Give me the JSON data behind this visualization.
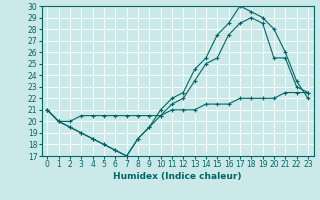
{
  "background_color": "#cce9e9",
  "grid_color": "#ffffff",
  "line_color": "#006666",
  "xlabel": "Humidex (Indice chaleur)",
  "xlim": [
    -0.5,
    23.5
  ],
  "ylim": [
    17,
    30
  ],
  "yticks": [
    17,
    18,
    19,
    20,
    21,
    22,
    23,
    24,
    25,
    26,
    27,
    28,
    29,
    30
  ],
  "xticks": [
    0,
    1,
    2,
    3,
    4,
    5,
    6,
    7,
    8,
    9,
    10,
    11,
    12,
    13,
    14,
    15,
    16,
    17,
    18,
    19,
    20,
    21,
    22,
    23
  ],
  "lines": [
    {
      "x": [
        0,
        1,
        2,
        3,
        4,
        5,
        6,
        7,
        8,
        9,
        10,
        11,
        12,
        13,
        14,
        15,
        16,
        17,
        18,
        19,
        20,
        21,
        22,
        23
      ],
      "y": [
        21.0,
        20.0,
        19.5,
        19.0,
        18.5,
        18.0,
        17.5,
        17.0,
        18.5,
        19.5,
        20.5,
        21.5,
        22.0,
        23.5,
        25.0,
        25.5,
        27.5,
        28.5,
        29.0,
        28.5,
        25.5,
        25.5,
        23.0,
        22.5
      ]
    },
    {
      "x": [
        0,
        1,
        2,
        3,
        4,
        5,
        6,
        7,
        8,
        9,
        10,
        11,
        12,
        13,
        14,
        15,
        16,
        17,
        18,
        19,
        20,
        21,
        22,
        23
      ],
      "y": [
        21.0,
        20.0,
        19.5,
        19.0,
        18.5,
        18.0,
        17.5,
        17.0,
        18.5,
        19.5,
        21.0,
        22.0,
        22.5,
        24.5,
        25.5,
        27.5,
        28.5,
        30.0,
        29.5,
        29.0,
        28.0,
        26.0,
        23.5,
        22.0
      ]
    },
    {
      "x": [
        0,
        1,
        2,
        3,
        4,
        5,
        6,
        7,
        8,
        9,
        10,
        11,
        12,
        13,
        14,
        15,
        16,
        17,
        18,
        19,
        20,
        21,
        22,
        23
      ],
      "y": [
        21.0,
        20.0,
        20.0,
        20.5,
        20.5,
        20.5,
        20.5,
        20.5,
        20.5,
        20.5,
        20.5,
        21.0,
        21.0,
        21.0,
        21.5,
        21.5,
        21.5,
        22.0,
        22.0,
        22.0,
        22.0,
        22.5,
        22.5,
        22.5
      ]
    }
  ],
  "figsize": [
    3.2,
    2.0
  ],
  "dpi": 100,
  "tick_fontsize": 5.5,
  "xlabel_fontsize": 6.5
}
